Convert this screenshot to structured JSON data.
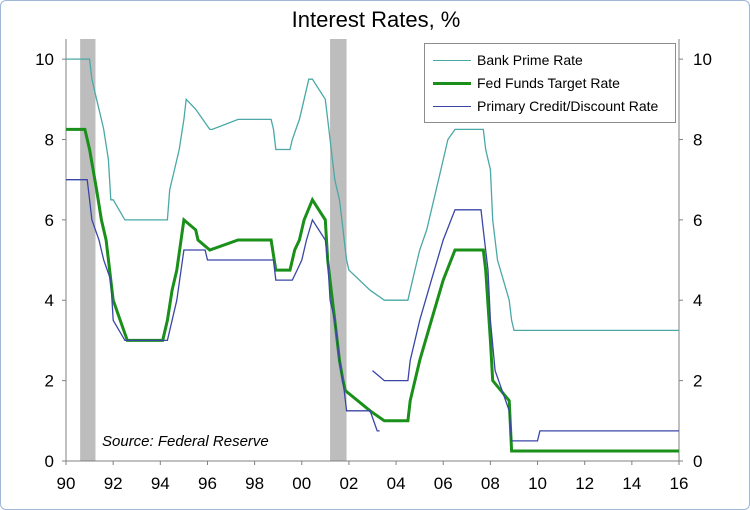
{
  "chart_data": {
    "type": "line",
    "title": "Interest Rates, %",
    "annotation": "Source: Federal Reserve",
    "x_tick_labels": [
      "90",
      "92",
      "94",
      "96",
      "98",
      "00",
      "02",
      "04",
      "06",
      "08",
      "10",
      "12",
      "14",
      "16"
    ],
    "y_ticks": [
      0,
      2,
      4,
      6,
      8,
      10
    ],
    "xlim": [
      1990,
      2016
    ],
    "ylim": [
      0,
      10.5
    ],
    "grid": false,
    "legend_position": "top-right",
    "recessions": [
      [
        1990.6,
        1991.25
      ],
      [
        2001.2,
        2001.9
      ]
    ],
    "series": [
      {
        "name": "Bank Prime Rate",
        "color": "#4aa8a6",
        "stroke_width": 1.3,
        "x": [
          1990.0,
          1991.0,
          1991.1,
          1991.3,
          1991.5,
          1991.6,
          1991.8,
          1991.9,
          1992.0,
          1992.5,
          1994.3,
          1994.4,
          1994.6,
          1994.8,
          1995.0,
          1995.1,
          1995.5,
          1996.1,
          1996.2,
          1997.3,
          1998.7,
          1998.8,
          1998.9,
          1999.5,
          1999.6,
          1999.9,
          2000.0,
          2000.1,
          2000.3,
          2000.45,
          2001.0,
          2001.1,
          2001.2,
          2001.3,
          2001.4,
          2001.5,
          2001.6,
          2001.7,
          2001.8,
          2001.9,
          2002.0,
          2002.9,
          2003.5,
          2004.5,
          2004.6,
          2004.8,
          2005.0,
          2005.3,
          2005.6,
          2005.9,
          2006.2,
          2006.5,
          2007.7,
          2007.8,
          2008.0,
          2008.1,
          2008.3,
          2008.8,
          2008.9,
          2009.0,
          2016.0
        ],
        "y": [
          10.0,
          10.0,
          9.5,
          9.0,
          8.5,
          8.25,
          7.5,
          6.5,
          6.5,
          6.0,
          6.0,
          6.75,
          7.25,
          7.75,
          8.5,
          9.0,
          8.75,
          8.25,
          8.25,
          8.5,
          8.5,
          8.25,
          7.75,
          7.75,
          8.0,
          8.5,
          8.75,
          9.0,
          9.5,
          9.5,
          9.0,
          8.5,
          8.0,
          7.5,
          7.0,
          6.75,
          6.5,
          6.0,
          5.5,
          5.0,
          4.75,
          4.25,
          4.0,
          4.0,
          4.25,
          4.75,
          5.25,
          5.75,
          6.5,
          7.25,
          8.0,
          8.25,
          8.25,
          7.75,
          7.25,
          6.0,
          5.0,
          4.0,
          3.5,
          3.25,
          3.25
        ]
      },
      {
        "name": "Fed Funds Target Rate",
        "color": "#1a8f1a",
        "stroke_width": 3,
        "x": [
          1990.0,
          1990.8,
          1991.0,
          1991.3,
          1991.5,
          1991.7,
          1991.9,
          1992.0,
          1992.3,
          1992.6,
          1994.1,
          1994.3,
          1994.5,
          1994.7,
          1995.0,
          1995.5,
          1995.6,
          1996.1,
          1997.3,
          1998.7,
          1998.9,
          1999.5,
          1999.7,
          1999.9,
          2000.1,
          2000.45,
          2001.0,
          2001.1,
          2001.25,
          2001.4,
          2001.6,
          2001.75,
          2001.85,
          2002.9,
          2003.5,
          2004.5,
          2004.6,
          2005.0,
          2005.5,
          2006.0,
          2006.5,
          2007.7,
          2007.8,
          2008.0,
          2008.1,
          2008.8,
          2008.9,
          2016.0
        ],
        "y": [
          8.25,
          8.25,
          7.75,
          6.75,
          6.0,
          5.5,
          4.5,
          4.0,
          3.5,
          3.0,
          3.0,
          3.5,
          4.25,
          4.75,
          6.0,
          5.75,
          5.5,
          5.25,
          5.5,
          5.5,
          4.75,
          4.75,
          5.25,
          5.5,
          6.0,
          6.5,
          6.0,
          5.0,
          4.25,
          3.5,
          2.5,
          2.0,
          1.75,
          1.25,
          1.0,
          1.0,
          1.5,
          2.5,
          3.5,
          4.5,
          5.25,
          5.25,
          4.75,
          3.0,
          2.0,
          1.5,
          0.25,
          0.25
        ]
      },
      {
        "name": "Primary Credit/Discount Rate",
        "color": "#3a46a6",
        "stroke_width": 1.3,
        "x": [
          1990.0,
          1990.9,
          1991.0,
          1991.1,
          1991.4,
          1991.6,
          1991.9,
          1992.0,
          1992.5,
          1994.3,
          1994.5,
          1994.7,
          1995.0,
          1995.9,
          1996.0,
          1998.8,
          1998.9,
          1999.6,
          1999.8,
          2000.0,
          2000.2,
          2000.45,
          2001.0,
          2001.1,
          2001.2,
          2001.4,
          2001.6,
          2001.8,
          2001.9,
          2002.9,
          2003.2,
          2003.3,
          null,
          2003.0,
          2003.5,
          2004.5,
          2004.6,
          2005.0,
          2005.5,
          2006.0,
          2006.5,
          2007.6,
          2007.7,
          2007.9,
          2008.0,
          2008.2,
          2008.8,
          2008.9,
          2009.0,
          2010.0,
          2010.1,
          2016.0
        ],
        "y": [
          7.0,
          7.0,
          6.5,
          6.0,
          5.5,
          5.0,
          4.5,
          3.5,
          3.0,
          3.0,
          3.5,
          4.0,
          5.25,
          5.25,
          5.0,
          5.0,
          4.5,
          4.5,
          4.75,
          5.0,
          5.5,
          6.0,
          5.5,
          5.0,
          4.0,
          3.5,
          2.5,
          1.75,
          1.25,
          1.25,
          0.75,
          0.75,
          null,
          2.25,
          2.0,
          2.0,
          2.5,
          3.5,
          4.5,
          5.5,
          6.25,
          6.25,
          5.75,
          4.75,
          3.5,
          2.25,
          1.25,
          0.5,
          0.5,
          0.5,
          0.75,
          0.75
        ]
      }
    ]
  }
}
